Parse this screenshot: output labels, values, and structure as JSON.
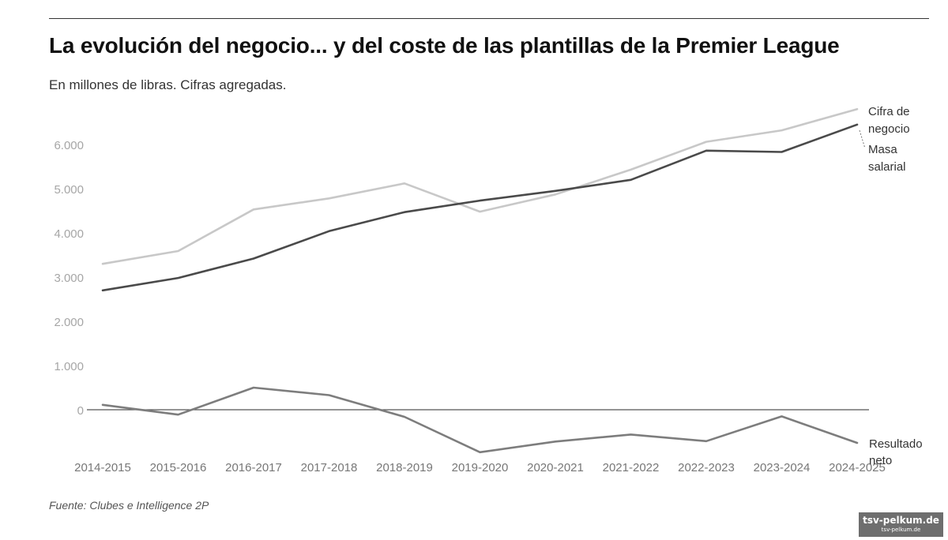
{
  "header": {
    "title": "La evolución del negocio... y del coste de las plantillas de la Premier League",
    "subtitle": "En millones de libras. Cifras agregadas."
  },
  "footer": {
    "source": "Fuente: Clubes e Intelligence 2P"
  },
  "watermark": {
    "text": "tsv-pelkum.de",
    "subtext": "tsv-pelkum.de"
  },
  "chart_data": {
    "type": "line",
    "title": "La evolución del negocio... y del coste de las plantillas de la Premier League",
    "subtitle": "En millones de libras. Cifras agregadas.",
    "categories": [
      "2014-2015",
      "2015-2016",
      "2016-2017",
      "2017-2018",
      "2018-2019",
      "2019-2020",
      "2020-2021",
      "2021-2022",
      "2022-2023",
      "2023-2024",
      "2024-2025"
    ],
    "y_ticks": [
      0,
      1000,
      2000,
      3000,
      4000,
      5000,
      6000
    ],
    "y_tick_labels": [
      "0",
      "1.000",
      "2.000",
      "3.000",
      "4.000",
      "5.000",
      "6.000"
    ],
    "ylim": [
      -1000,
      6600
    ],
    "grid": false,
    "zero_line": true,
    "legend": "direct labels at line ends (right)",
    "series": [
      {
        "name": "Cifra de negocio",
        "label_lines": [
          "Cifra de",
          "negocio"
        ],
        "color": "#c8c8c8",
        "values": [
          3300,
          3590,
          4530,
          4780,
          5120,
          4480,
          4870,
          5430,
          6060,
          6320,
          6800
        ]
      },
      {
        "name": "Masa salarial",
        "label_lines": [
          "Masa",
          "salarial"
        ],
        "color": "#4a4a4a",
        "values": [
          2700,
          2980,
          3420,
          4040,
          4470,
          4730,
          4950,
          5200,
          5860,
          5830,
          6450
        ]
      },
      {
        "name": "Resultado neto",
        "label_lines": [
          "Resultado",
          "neto"
        ],
        "color": "#7d7d7d",
        "values": [
          110,
          -110,
          500,
          330,
          -160,
          -960,
          -720,
          -560,
          -710,
          -150,
          -750
        ]
      }
    ]
  }
}
